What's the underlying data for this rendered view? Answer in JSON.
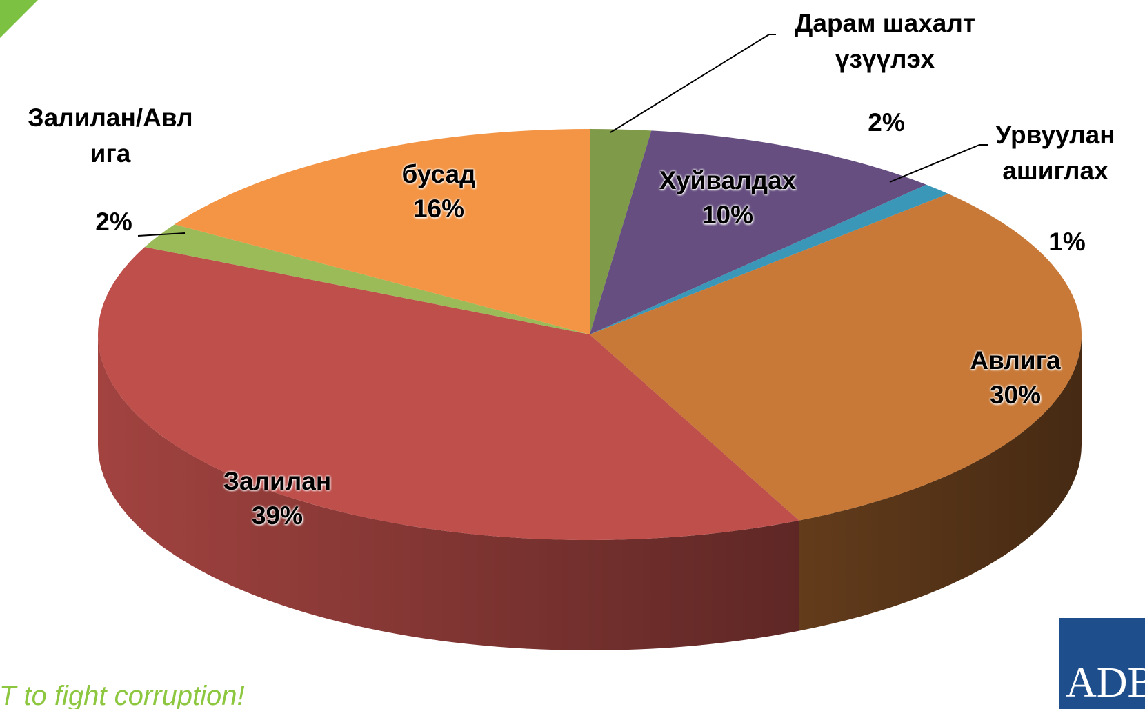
{
  "chart_data": {
    "type": "pie3d",
    "categories": [
      "Дарам шахалт\nүзүүлэх",
      "Хуйвалдах",
      "Урвуулан\nашиглах",
      "Авлига",
      "Залилан",
      "Залилан/Авл\nига",
      "бусад"
    ],
    "values": [
      2,
      10,
      1,
      30,
      39,
      2,
      16
    ],
    "value_labels": [
      "2%",
      "10%",
      "1%",
      "30%",
      "39%",
      "2%",
      "16%"
    ],
    "colors": [
      "#7f9a48",
      "#664f80",
      "#3a97b8",
      "#c87937",
      "#be4f4b",
      "#9bbb59",
      "#f39545"
    ]
  },
  "footer": "CT to fight corruption!",
  "logo": "ADB"
}
